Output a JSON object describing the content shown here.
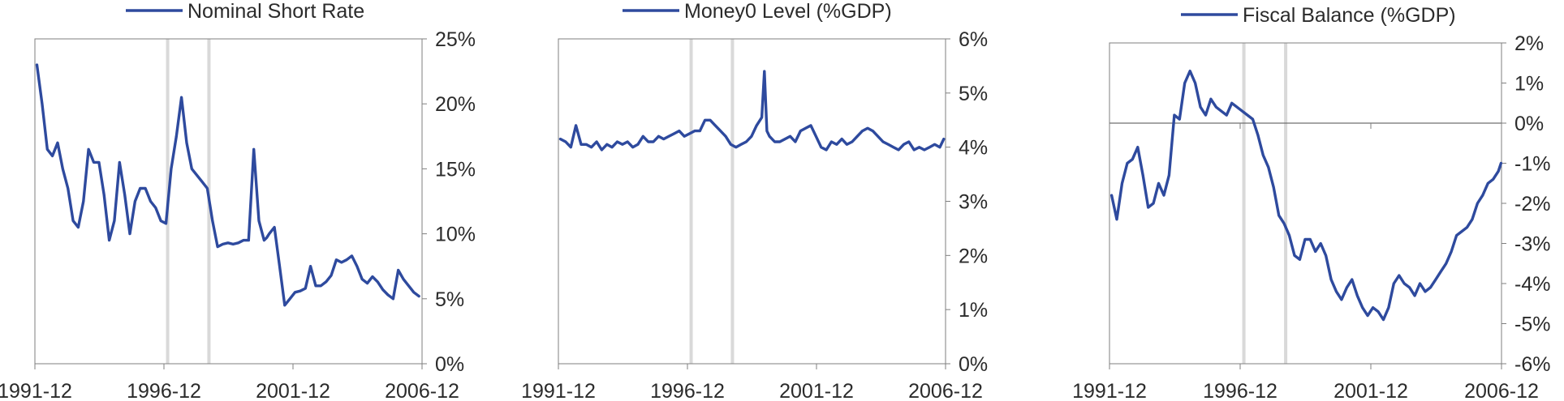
{
  "colors": {
    "line": "#2E4A9E",
    "recession": "#D9D9D9",
    "frame": "#7F7F7F",
    "text": "#2b2b2b"
  },
  "shared": {
    "x_tick_labels": [
      "1991-12",
      "1996-12",
      "2001-12",
      "2006-12"
    ],
    "recession_bands": [
      {
        "start": 1997.0,
        "end": 1997.1
      },
      {
        "start": 1998.6,
        "end": 1998.7
      }
    ]
  },
  "chart_data": [
    {
      "type": "line",
      "legend": "Nominal Short Rate",
      "y_tick_labels": [
        "0%",
        "5%",
        "10%",
        "15%",
        "20%",
        "25%"
      ],
      "ylim": [
        0,
        25
      ],
      "xlim": [
        1991.92,
        2006.92
      ],
      "zero_line": false,
      "series": [
        {
          "x": [
            1992.0,
            1992.2,
            1992.4,
            1992.6,
            1992.8,
            1993.0,
            1993.2,
            1993.4,
            1993.6,
            1993.8,
            1994.0,
            1994.2,
            1994.4,
            1994.6,
            1994.8,
            1995.0,
            1995.2,
            1995.4,
            1995.6,
            1995.8,
            1996.0,
            1996.2,
            1996.4,
            1996.6,
            1996.8,
            1997.0,
            1997.2,
            1997.4,
            1997.6,
            1997.8,
            1998.0,
            1998.2,
            1998.4,
            1998.6,
            1998.8,
            1999.0,
            1999.2,
            1999.4,
            1999.6,
            1999.8,
            2000.0,
            2000.2,
            2000.4,
            2000.6,
            2000.8,
            2000.9,
            2001.0,
            2001.2,
            2001.4,
            2001.6,
            2001.8,
            2002.0,
            2002.2,
            2002.4,
            2002.6,
            2002.8,
            2003.0,
            2003.2,
            2003.4,
            2003.6,
            2003.8,
            2004.0,
            2004.2,
            2004.4,
            2004.6,
            2004.8,
            2005.0,
            2005.2,
            2005.4,
            2005.6,
            2005.8,
            2006.0,
            2006.2,
            2006.4,
            2006.6,
            2006.8
          ],
          "values": [
            23.0,
            20.0,
            16.5,
            16.0,
            17.0,
            15.0,
            13.5,
            11.0,
            10.5,
            12.5,
            16.5,
            15.5,
            15.5,
            13.0,
            9.5,
            11.0,
            15.5,
            13.0,
            10.0,
            12.5,
            13.5,
            13.5,
            12.5,
            12.0,
            11.0,
            10.8,
            15.0,
            17.5,
            20.5,
            17.0,
            15.0,
            14.5,
            14.0,
            13.5,
            11.0,
            9.0,
            9.2,
            9.3,
            9.2,
            9.3,
            9.5,
            9.5,
            16.5,
            11.0,
            9.5,
            9.7,
            10.0,
            10.5,
            7.5,
            4.5,
            5.0,
            5.5,
            5.6,
            5.8,
            7.5,
            6.0,
            6.0,
            6.3,
            6.8,
            8.0,
            7.8,
            8.0,
            8.3,
            7.5,
            6.5,
            6.2,
            6.7,
            6.3,
            5.7,
            5.3,
            5.0,
            7.2,
            6.5,
            6.0,
            5.5,
            5.2
          ]
        }
      ]
    },
    {
      "type": "line",
      "legend": "Money0 Level (%GDP)",
      "y_tick_labels": [
        "0%",
        "1%",
        "2%",
        "3%",
        "4%",
        "5%",
        "6%"
      ],
      "ylim": [
        0,
        6
      ],
      "xlim": [
        1991.92,
        2006.92
      ],
      "zero_line": false,
      "series": [
        {
          "x": [
            1992.0,
            1992.2,
            1992.4,
            1992.6,
            1992.8,
            1993.0,
            1993.2,
            1993.4,
            1993.6,
            1993.8,
            1994.0,
            1994.2,
            1994.4,
            1994.6,
            1994.8,
            1995.0,
            1995.2,
            1995.4,
            1995.6,
            1995.8,
            1996.0,
            1996.2,
            1996.4,
            1996.6,
            1996.8,
            1997.0,
            1997.2,
            1997.4,
            1997.6,
            1997.8,
            1998.0,
            1998.2,
            1998.4,
            1998.6,
            1998.8,
            1999.0,
            1999.2,
            1999.4,
            1999.6,
            1999.8,
            1999.9,
            2000.0,
            2000.1,
            2000.3,
            2000.5,
            2000.7,
            2000.9,
            2001.1,
            2001.3,
            2001.5,
            2001.7,
            2001.9,
            2002.1,
            2002.3,
            2002.5,
            2002.7,
            2002.9,
            2003.1,
            2003.3,
            2003.5,
            2003.7,
            2003.9,
            2004.1,
            2004.3,
            2004.5,
            2004.7,
            2004.9,
            2005.1,
            2005.3,
            2005.5,
            2005.7,
            2005.9,
            2006.1,
            2006.3,
            2006.5,
            2006.7,
            2006.85
          ],
          "values": [
            4.15,
            4.1,
            4.0,
            4.4,
            4.05,
            4.05,
            4.0,
            4.1,
            3.95,
            4.05,
            4.0,
            4.1,
            4.05,
            4.1,
            4.0,
            4.05,
            4.2,
            4.1,
            4.1,
            4.2,
            4.15,
            4.2,
            4.25,
            4.3,
            4.2,
            4.25,
            4.3,
            4.3,
            4.5,
            4.5,
            4.4,
            4.3,
            4.2,
            4.05,
            4.0,
            4.05,
            4.1,
            4.2,
            4.4,
            4.55,
            5.4,
            4.3,
            4.2,
            4.1,
            4.1,
            4.15,
            4.2,
            4.1,
            4.3,
            4.35,
            4.4,
            4.2,
            4.0,
            3.95,
            4.1,
            4.05,
            4.15,
            4.05,
            4.1,
            4.2,
            4.3,
            4.35,
            4.3,
            4.2,
            4.1,
            4.05,
            4.0,
            3.95,
            4.05,
            4.1,
            3.95,
            4.0,
            3.95,
            4.0,
            4.05,
            4.0,
            4.15
          ]
        }
      ]
    },
    {
      "type": "line",
      "legend": "Fiscal Balance (%GDP)",
      "y_tick_labels": [
        "-6%",
        "-5%",
        "-4%",
        "-3%",
        "-2%",
        "-1%",
        "0%",
        "1%",
        "2%"
      ],
      "ylim": [
        -6,
        2
      ],
      "xlim": [
        1991.92,
        2006.92
      ],
      "zero_line": true,
      "series": [
        {
          "x": [
            1992.0,
            1992.2,
            1992.4,
            1992.6,
            1992.8,
            1993.0,
            1993.2,
            1993.4,
            1993.6,
            1993.8,
            1994.0,
            1994.2,
            1994.4,
            1994.6,
            1994.8,
            1995.0,
            1995.2,
            1995.4,
            1995.6,
            1995.8,
            1996.0,
            1996.2,
            1996.4,
            1996.6,
            1996.8,
            1997.0,
            1997.2,
            1997.4,
            1997.6,
            1997.8,
            1998.0,
            1998.2,
            1998.4,
            1998.6,
            1998.8,
            1999.0,
            1999.2,
            1999.4,
            1999.6,
            1999.8,
            2000.0,
            2000.2,
            2000.4,
            2000.6,
            2000.8,
            2001.0,
            2001.2,
            2001.4,
            2001.6,
            2001.8,
            2002.0,
            2002.2,
            2002.4,
            2002.6,
            2002.8,
            2003.0,
            2003.2,
            2003.4,
            2003.6,
            2003.8,
            2004.0,
            2004.2,
            2004.4,
            2004.6,
            2004.8,
            2005.0,
            2005.2,
            2005.4,
            2005.6,
            2005.8,
            2006.0,
            2006.2,
            2006.4,
            2006.6,
            2006.8,
            2006.9
          ],
          "values": [
            -1.8,
            -2.4,
            -1.5,
            -1.0,
            -0.9,
            -0.6,
            -1.3,
            -2.1,
            -2.0,
            -1.5,
            -1.8,
            -1.3,
            0.2,
            0.1,
            1.0,
            1.3,
            1.0,
            0.4,
            0.2,
            0.6,
            0.4,
            0.3,
            0.2,
            0.5,
            0.4,
            0.3,
            0.2,
            0.1,
            -0.3,
            -0.8,
            -1.1,
            -1.6,
            -2.3,
            -2.5,
            -2.8,
            -3.3,
            -3.4,
            -2.9,
            -2.9,
            -3.2,
            -3.0,
            -3.3,
            -3.9,
            -4.2,
            -4.4,
            -4.1,
            -3.9,
            -4.3,
            -4.6,
            -4.8,
            -4.6,
            -4.7,
            -4.9,
            -4.6,
            -4.0,
            -3.8,
            -4.0,
            -4.1,
            -4.3,
            -4.0,
            -4.2,
            -4.1,
            -3.9,
            -3.7,
            -3.5,
            -3.2,
            -2.8,
            -2.7,
            -2.6,
            -2.4,
            -2.0,
            -1.8,
            -1.5,
            -1.4,
            -1.2,
            -1.0
          ]
        }
      ]
    }
  ]
}
